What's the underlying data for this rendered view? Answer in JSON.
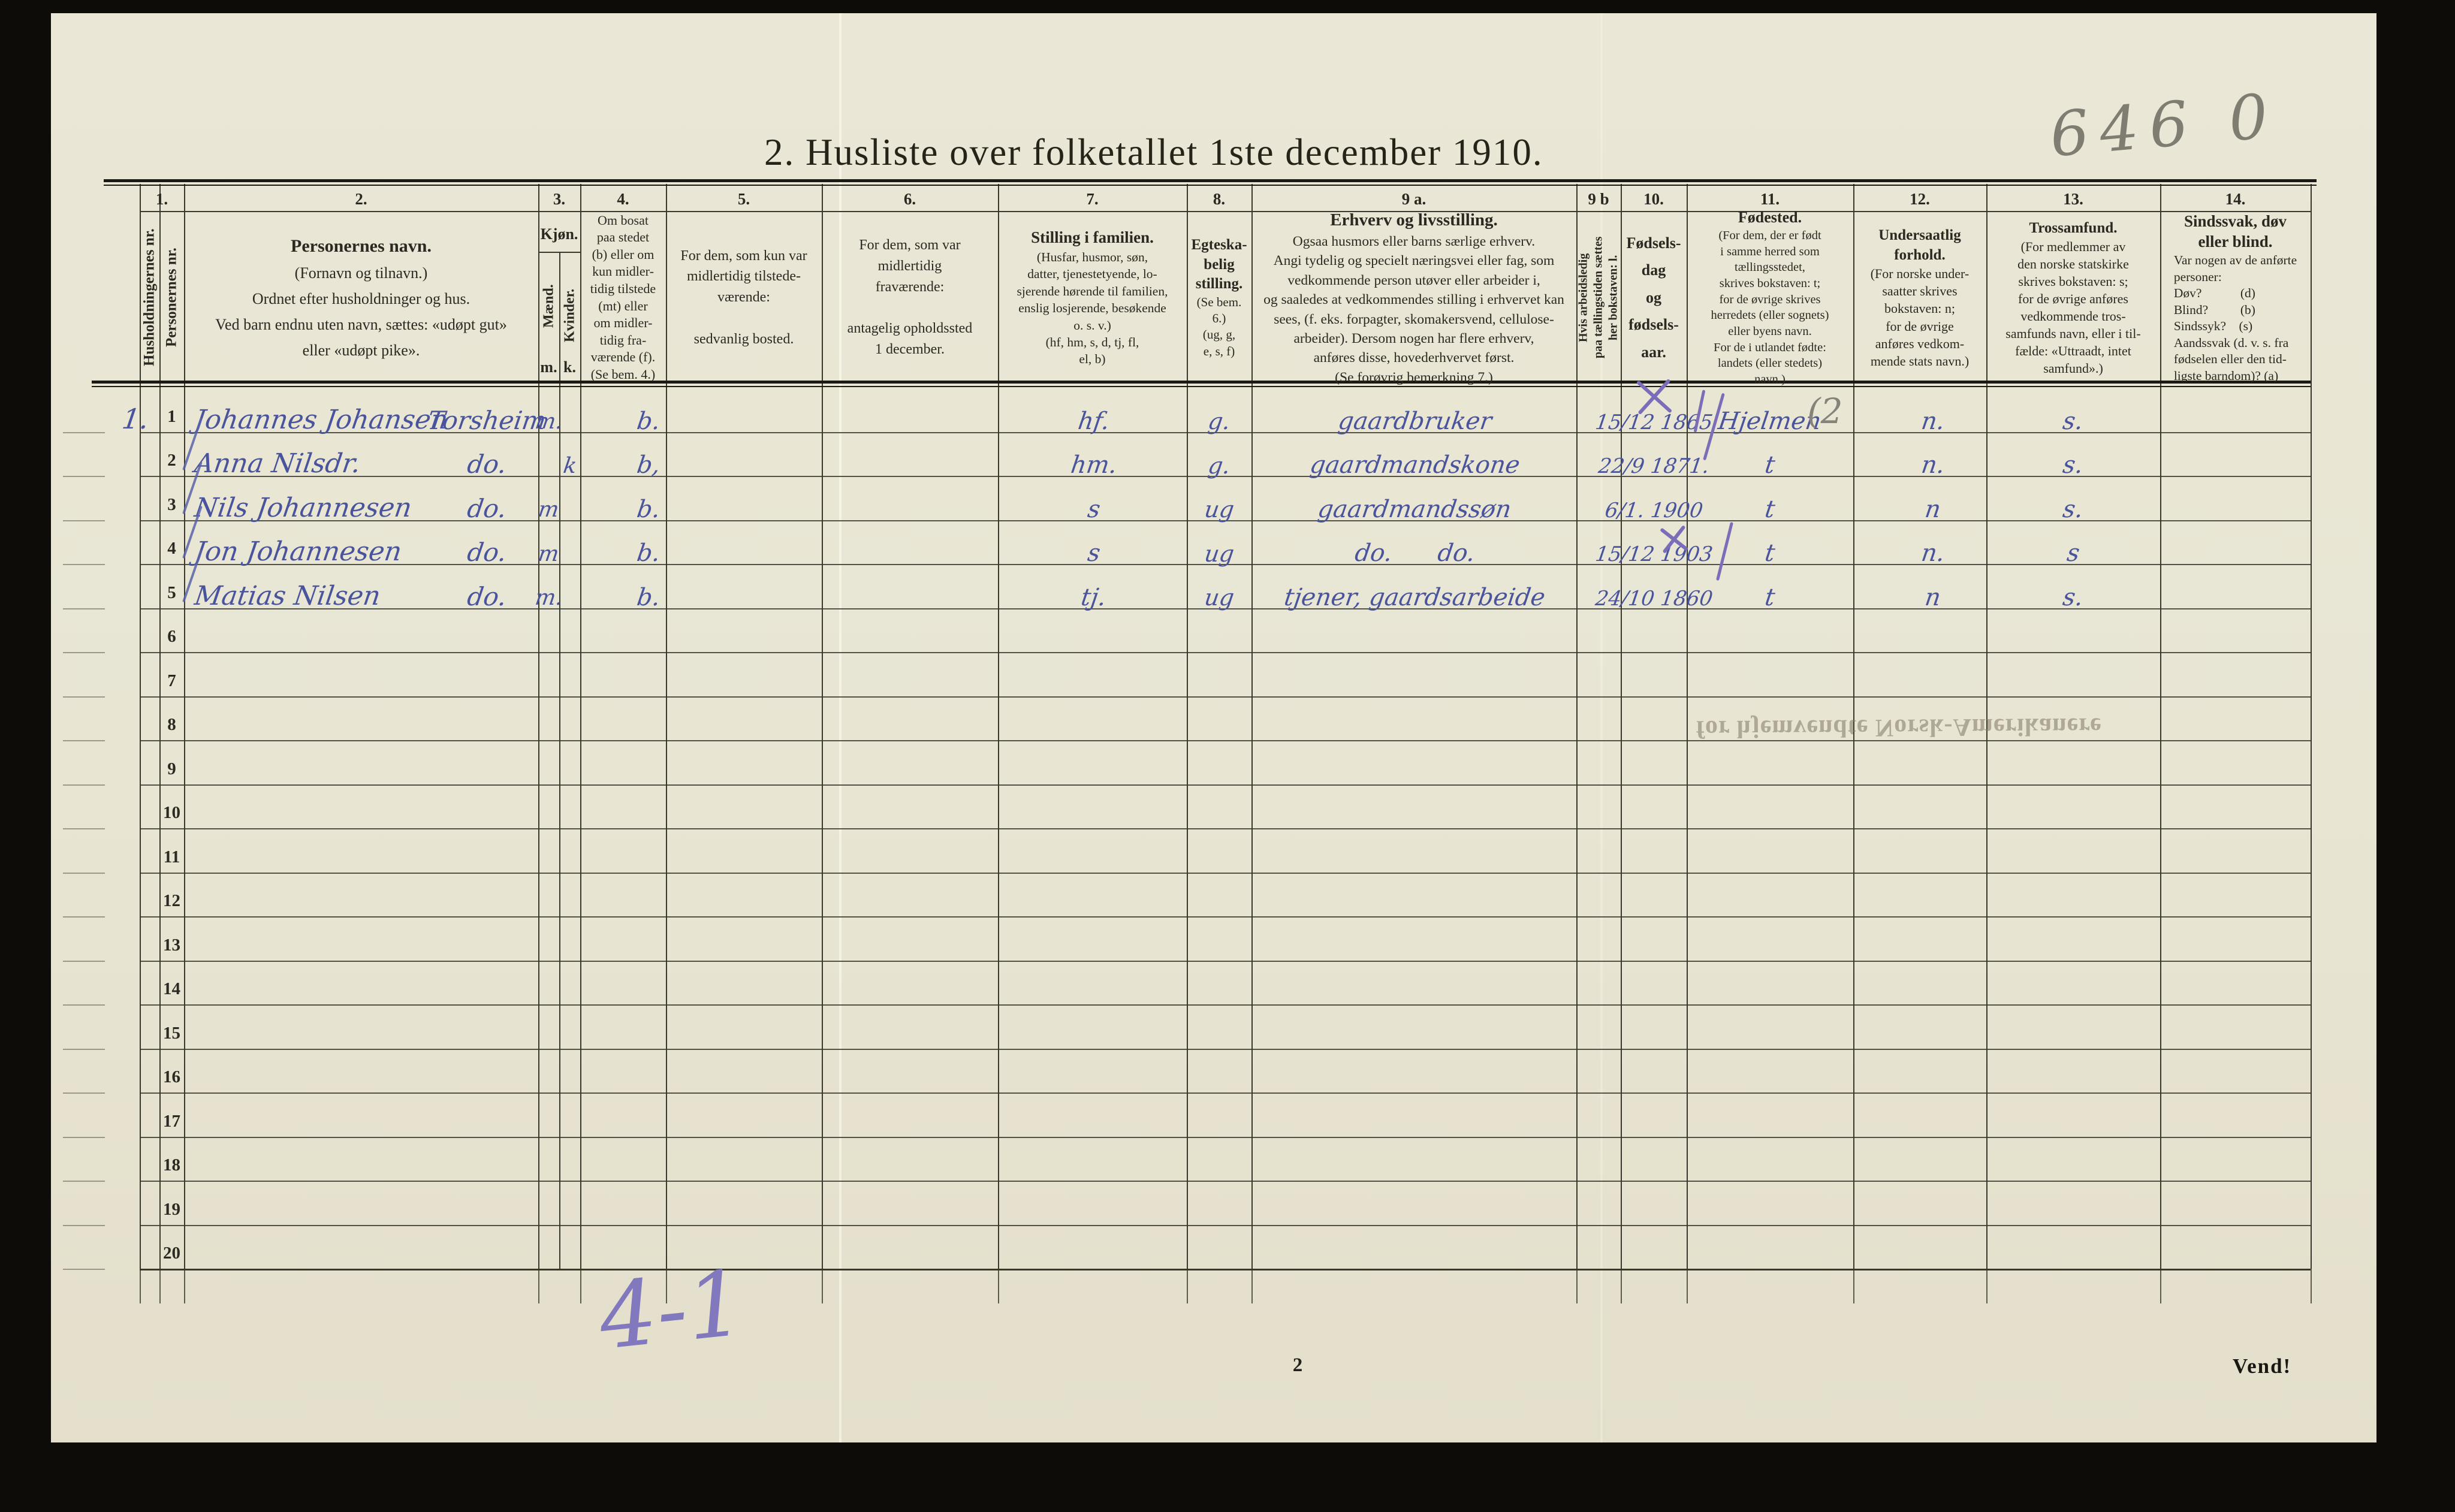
{
  "title": "2. Husliste over folketallet 1ste december 1910.",
  "annotations": {
    "stamp": "646 0",
    "pencil_note_col11": "(2",
    "bottom_tally": "4-1",
    "page_number": "2",
    "vend": "Vend!",
    "bleed_through": "for hjemvendte Norsk-Amerikanere",
    "marks": [
      {
        "type": "cross",
        "at": "row1-date"
      },
      {
        "type": "tick",
        "at": "row1-after-date"
      },
      {
        "type": "tick",
        "at": "row1-before-birthplace"
      },
      {
        "type": "cross",
        "at": "row4-date"
      },
      {
        "type": "tick",
        "at": "row4-after-date"
      }
    ]
  },
  "columns": [
    {
      "id": "1",
      "num": "1.",
      "vertical_left": "Husholdningernes nr.",
      "vertical_right": "Personernes nr."
    },
    {
      "id": "2",
      "num": "2.",
      "title": "Personernes navn.",
      "note": "(Fornavn og tilnavn.)\nOrdnet efter husholdninger og hus.\nVed barn endnu uten navn, sættes: «udøpt gut»\neller «udøpt pike»."
    },
    {
      "id": "3",
      "num": "3.",
      "title": "Kjøn.",
      "male": "Mænd.",
      "female": "Kvinder.",
      "male_abbr": "m.",
      "female_abbr": "k."
    },
    {
      "id": "4",
      "num": "4.",
      "note": "Om bosat\npaa stedet\n(b) eller om\nkun midler-\ntidig tilstede\n(mt) eller\nom midler-\ntidig fra-\nværende (f).\n(Se bem. 4.)"
    },
    {
      "id": "5",
      "num": "5.",
      "note": "For dem, som kun var\nmidlertidig tilstede-\nværende:\n\nsedvanlig bosted."
    },
    {
      "id": "6",
      "num": "6.",
      "note": "For dem, som var\nmidlertidig\nfraværende:\n\nantagelig opholdssted\n1 december."
    },
    {
      "id": "7",
      "num": "7.",
      "title": "Stilling i familien.",
      "note": "(Husfar, husmor, søn,\ndatter, tjenestetyende, lo-\nsjerende hørende til familien,\nenslig losjerende, besøkende\no. s. v.)\n(hf, hm, s, d, tj, fl,\nel, b)"
    },
    {
      "id": "8",
      "num": "8.",
      "title": "Egteska-\nbelig\nstilling.",
      "note": "(Se bem. 6.)\n(ug, g,\ne, s, f)"
    },
    {
      "id": "9a",
      "num": "9 a.",
      "title": "Erhverv og livsstilling.",
      "note": "Ogsaa husmors eller barns særlige erhverv.\nAngi tydelig og specielt næringsvei eller fag, som\nvedkommende person utøver eller arbeider i,\nog saaledes at vedkommendes stilling i erhvervet kan\nsees, (f. eks.  forpagter,  skomakersvend, cellulose-\narbeider).  Dersom nogen har flere erhverv,\nanføres disse, hovederhvervet først.\n(Se forøvrig bemerkning 7.)"
    },
    {
      "id": "9b",
      "num": "9 b",
      "vertical": "Hvis arbeidsledig\npaa tællingstiden sættes\nher bokstaven: l."
    },
    {
      "id": "10",
      "num": "10.",
      "title": "Fødsels-\ndag\nog\nfødsels-\naar."
    },
    {
      "id": "11",
      "num": "11.",
      "title": "Fødested.",
      "note": "(For dem, der er født\ni samme herred som\ntællingsstedet,\nskrives bokstaven: t;\nfor de øvrige skrives\nherredets (eller sognets)\neller byens navn.\nFor de i utlandet fødte:\nlandets (eller stedets)\nnavn.)"
    },
    {
      "id": "12",
      "num": "12.",
      "title": "Undersaatlig\nforhold.",
      "note": "(For norske under-\nsaatter skrives\nbokstaven: n;\nfor de øvrige\nanføres vedkom-\nmende stats navn.)"
    },
    {
      "id": "13",
      "num": "13.",
      "title": "Trossamfund.",
      "note": "(For medlemmer av\nden norske statskirke\nskrives bokstaven: s;\nfor de øvrige anføres\nvedkommende tros-\nsamfunds navn, eller i til-\nfælde:  «Uttraadt, intet\nsamfund».)"
    },
    {
      "id": "14",
      "num": "14.",
      "title": "Sindssvak, døv\neller blind.",
      "note": "Var nogen av de anførte\npersoner:\nDøv?      (d)\nBlind?     (b)\nSindssyk?  (s)\nAandssvak (d. v. s. fra\nfødselen eller den tid-\nligste barndom)? (a)"
    }
  ],
  "rows": [
    {
      "nr": "1",
      "household": "1.",
      "name": "Johannes Johansen",
      "name2": "Torsheim",
      "kjon_m": "m.",
      "kjon_k": "",
      "bosat": "b.",
      "stilling": "hf.",
      "egteskap": "g.",
      "erhverv": "gaardbruker",
      "fodselsdato": "15/12 1865",
      "fodested": "Hjelmen",
      "undersaatlig": "n.",
      "trossamfund": "s."
    },
    {
      "nr": "2",
      "household": "",
      "name": "Anna Nilsdr.",
      "name2": "do.",
      "kjon_m": "",
      "kjon_k": "k",
      "bosat": "b,",
      "stilling": "hm.",
      "egteskap": "g.",
      "erhverv": "gaardmandskone",
      "fodselsdato": "22/9 1871.",
      "fodested": "t",
      "undersaatlig": "n.",
      "trossamfund": "s."
    },
    {
      "nr": "3",
      "household": "",
      "name": "Nils Johannesen",
      "name2": "do.",
      "kjon_m": "m",
      "kjon_k": "",
      "bosat": "b.",
      "stilling": "s",
      "egteskap": "ug",
      "erhverv": "gaardmandssøn",
      "fodselsdato": "6/1. 1900",
      "fodested": "t",
      "undersaatlig": "n",
      "trossamfund": "s."
    },
    {
      "nr": "4",
      "household": "",
      "name": "Jon Johannesen",
      "name2": "do.",
      "kjon_m": "m",
      "kjon_k": "",
      "bosat": "b.",
      "stilling": "s",
      "egteskap": "ug",
      "erhverv": "do.      do.",
      "fodselsdato": "15/12 1903",
      "fodested": "t",
      "undersaatlig": "n.",
      "trossamfund": "s"
    },
    {
      "nr": "5",
      "household": "",
      "name": "Matias Nilsen",
      "name2": "do.",
      "kjon_m": "m.",
      "kjon_k": "",
      "bosat": "b.",
      "stilling": "tj.",
      "egteskap": "ug",
      "erhverv": "tjener, gaardsarbeide",
      "fodselsdato": "24/10 1860",
      "fodested": "t",
      "undersaatlig": "n",
      "trossamfund": "s."
    },
    {
      "nr": "6"
    },
    {
      "nr": "7"
    },
    {
      "nr": "8"
    },
    {
      "nr": "9"
    },
    {
      "nr": "10"
    },
    {
      "nr": "11"
    },
    {
      "nr": "12"
    },
    {
      "nr": "13"
    },
    {
      "nr": "14"
    },
    {
      "nr": "15"
    },
    {
      "nr": "16"
    },
    {
      "nr": "17"
    },
    {
      "nr": "18"
    },
    {
      "nr": "19"
    },
    {
      "nr": "20"
    }
  ],
  "colors": {
    "ink_blue": "#4a549c",
    "ink_violet": "#7b6db8",
    "pencil": "#85827a",
    "paper": "#e9e6d3",
    "print": "#2b2921"
  }
}
